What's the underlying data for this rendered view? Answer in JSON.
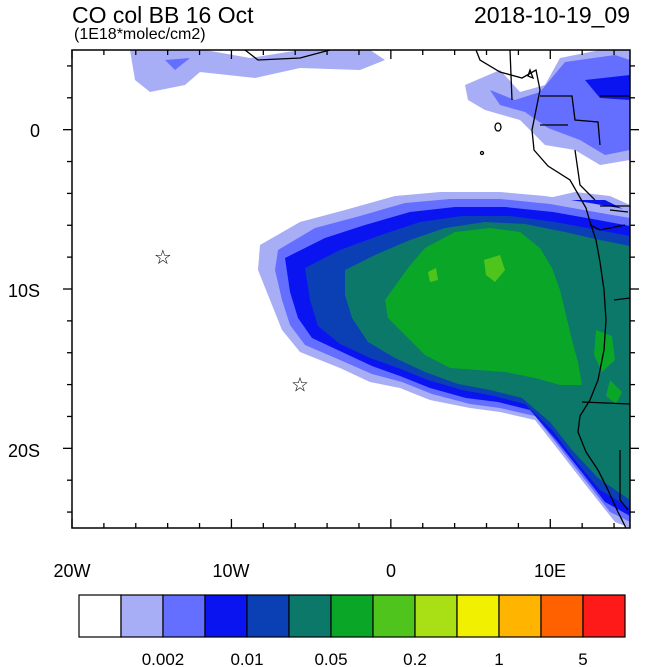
{
  "header": {
    "title": "CO col BB 16 Oct",
    "subtitle": "(1E18*molec/cm2)",
    "timestamp": "2018-10-19_09"
  },
  "map": {
    "lon_range": [
      -20,
      15
    ],
    "lat_range": [
      -25,
      5
    ],
    "x_tick_labels": [
      "20W",
      "10W",
      "0",
      "10E"
    ],
    "y_tick_labels": [
      "0",
      "10S",
      "20S"
    ],
    "markers": [
      {
        "name": "star-marker-1",
        "lon": -14.3,
        "lat": -8.0,
        "symbol": "☆"
      },
      {
        "name": "star-marker-2",
        "lon": -5.7,
        "lat": -16.0,
        "symbol": "☆"
      }
    ]
  },
  "colorbar": {
    "colors": [
      "#ffffff",
      "#a8aef5",
      "#646eff",
      "#0a14f0",
      "#0b40b4",
      "#0b786a",
      "#0aa628",
      "#4fc41c",
      "#a8e015",
      "#f0f000",
      "#ffb400",
      "#ff6000",
      "#ff1a1a"
    ],
    "labels": [
      "0.002",
      "0.01",
      "0.05",
      "0.2",
      "1",
      "5"
    ]
  }
}
